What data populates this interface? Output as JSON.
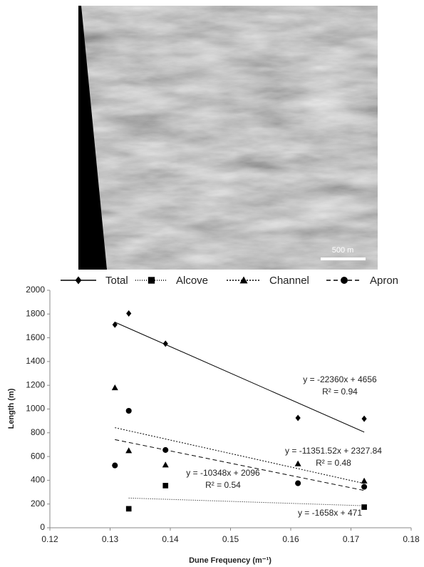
{
  "image": {
    "scale_label": "500 m"
  },
  "chart_data": {
    "type": "scatter",
    "x_label": "Dune Frequency (m⁻¹)",
    "y_label": "Length (m)",
    "xlim": [
      0.12,
      0.18
    ],
    "xticks": [
      0.12,
      0.13,
      0.14,
      0.15,
      0.16,
      0.17,
      0.18
    ],
    "ylim": [
      0,
      2000
    ],
    "yticks": [
      0,
      200,
      400,
      600,
      800,
      1000,
      1200,
      1400,
      1600,
      1800,
      2000
    ],
    "series": [
      {
        "name": "Total",
        "color": "#000000",
        "marker": "diamond",
        "dash": "none",
        "x": [
          0.1308,
          0.1331,
          0.1392,
          0.1612,
          0.1722
        ],
        "values": [
          1710,
          1805,
          1550,
          925,
          918
        ],
        "trendline": {
          "slope": -22360,
          "intercept": 4656,
          "label": "y = -22360x + 4656",
          "r2_label": "R² = 0.94"
        }
      },
      {
        "name": "Alcove",
        "color": "#000000",
        "marker": "square",
        "dash": "1,2",
        "x": [
          0.1331,
          0.1392,
          0.1722
        ],
        "values": [
          160,
          355,
          174
        ],
        "trendline": {
          "slope": -1658,
          "intercept": 471,
          "label": "y = -1658x + 471"
        }
      },
      {
        "name": "Channel",
        "color": "#000000",
        "marker": "triangle",
        "dash": "2,2",
        "x": [
          0.1308,
          0.1331,
          0.1392,
          0.1612,
          0.1722
        ],
        "values": [
          1180,
          650,
          530,
          540,
          395
        ],
        "trendline": {
          "slope": -11351.52,
          "intercept": 2327.84,
          "label": "y = -11351.52x + 2327.84",
          "r2_label": "R² = 0.48"
        }
      },
      {
        "name": "Apron",
        "color": "#000000",
        "marker": "circle",
        "dash": "6,4",
        "x": [
          0.1308,
          0.1331,
          0.1392,
          0.1612,
          0.1722
        ],
        "values": [
          525,
          985,
          655,
          375,
          345
        ],
        "trendline": {
          "slope": -10348,
          "intercept": 2096,
          "label": "y = -10348x + 2096",
          "r2_label": "R² = 0.54"
        }
      }
    ]
  }
}
